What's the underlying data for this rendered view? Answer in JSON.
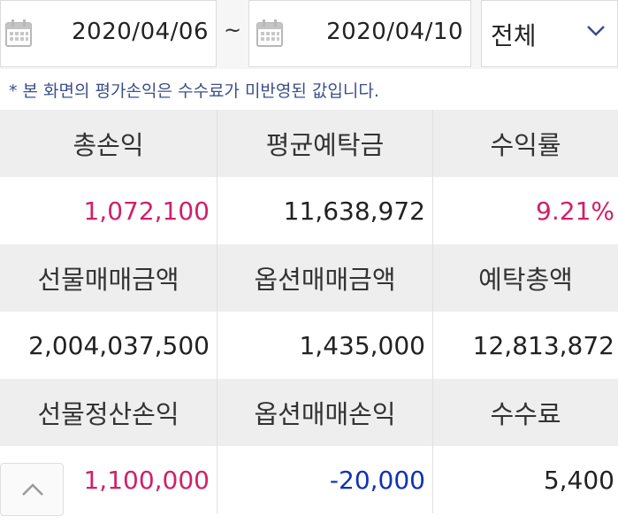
{
  "date_range": {
    "start": "2020/04/06",
    "separator": "~",
    "end": "2020/04/10",
    "filter_value": "전체"
  },
  "notice": "* 본 화면의 평가손익은 수수료가 미반영된 값입니다.",
  "summary": [
    {
      "labels": [
        "총손익",
        "평균예탁금",
        "수익률"
      ],
      "values": [
        "1,072,100",
        "11,638,972",
        "9.21%"
      ]
    },
    {
      "labels": [
        "선물매매금액",
        "옵션매매금액",
        "예탁총액"
      ],
      "values": [
        "2,004,037,500",
        "1,435,000",
        "12,813,872"
      ]
    },
    {
      "labels": [
        "선물정산손익",
        "옵션매매손익",
        "수수료"
      ],
      "values": [
        "1,100,000",
        "-20,000",
        "5,400"
      ]
    }
  ],
  "colors": {
    "positive": "#d0206a",
    "negative": "#1030b8",
    "notice": "#3d4f8c"
  },
  "icons": {
    "calendar": "calendar-icon",
    "dropdown": "chevron-down-icon",
    "scroll_top": "chevron-up-icon"
  }
}
